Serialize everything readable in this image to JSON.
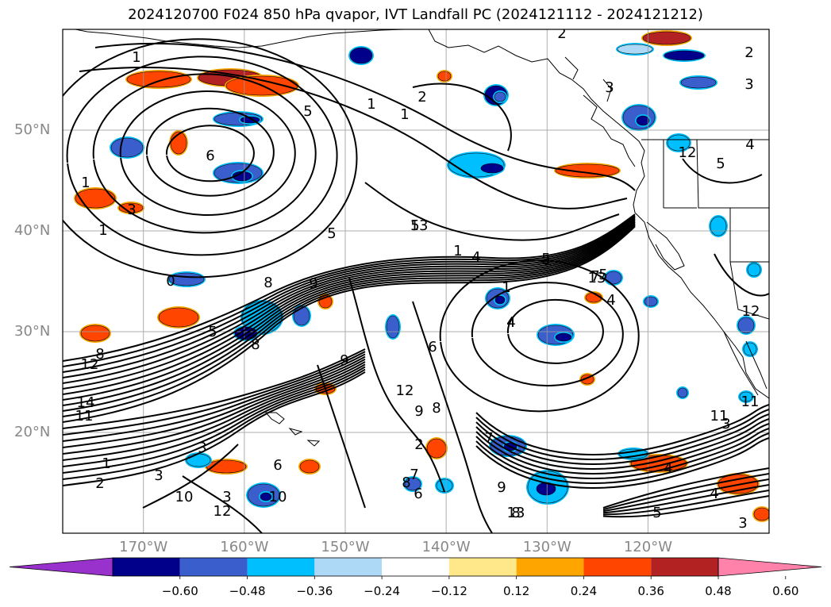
{
  "title": "2024120700 F024 850 hPa qvapor, IVT Landfall PC (2024121112 - 2024121212)",
  "map": {
    "extent": {
      "lon_min": -178,
      "lon_max": -108,
      "lat_min": 10,
      "lat_max": 60
    },
    "lat_ticks": [
      {
        "value": 20,
        "label": "20°N"
      },
      {
        "value": 30,
        "label": "30°N"
      },
      {
        "value": 40,
        "label": "40°N"
      },
      {
        "value": 50,
        "label": "50°N"
      }
    ],
    "lon_ticks": [
      {
        "value": -170,
        "label": "170°W"
      },
      {
        "value": -160,
        "label": "160°W"
      },
      {
        "value": -150,
        "label": "150°W"
      },
      {
        "value": -140,
        "label": "140°W"
      },
      {
        "value": -130,
        "label": "130°W"
      },
      {
        "value": -120,
        "label": "120°W"
      }
    ],
    "gridlines": true,
    "colors": {
      "land_outline": "#000000",
      "grid": "#999999",
      "contour": "#000000",
      "lat_lon_text": "#888888"
    }
  },
  "colorbar": {
    "orientation": "horizontal",
    "extend": "both",
    "levels": [
      -0.72,
      -0.6,
      -0.48,
      -0.36,
      -0.24,
      -0.12,
      0.12,
      0.24,
      0.36,
      0.48,
      0.6,
      0.72
    ],
    "colors": [
      "#9932CC",
      "#00008B",
      "#3A5FCD",
      "#00BFFF",
      "#ADD8F6",
      "#FFFFFF",
      "#FFE88A",
      "#FFA500",
      "#FF4500",
      "#B22222",
      "#FF82AB"
    ],
    "tick_labels": [
      "−0.60",
      "−0.48",
      "−0.36",
      "−0.24",
      "−0.12",
      "0.12",
      "0.24",
      "0.36",
      "0.48",
      "0.60"
    ]
  },
  "contour_labels": [
    "2",
    "2",
    "3",
    "3",
    "1",
    "5",
    "6",
    "1",
    "2",
    "1",
    "1",
    "1",
    "0",
    "8",
    "9",
    "5",
    "3",
    "5",
    "1",
    "4",
    "5",
    "7",
    "4",
    "1",
    "4",
    "5",
    "6",
    "9",
    "8",
    "8",
    "12",
    "10",
    "14",
    "11",
    "2",
    "3",
    "3",
    "1",
    "6",
    "3",
    "10",
    "12",
    "13",
    "12",
    "9",
    "8",
    "2",
    "8",
    "6",
    "7",
    "9",
    "8",
    "5",
    "3",
    "11",
    "12",
    "13",
    "4",
    "4",
    "11",
    "12",
    "13",
    "5",
    "1",
    "4",
    "7",
    "5",
    "4",
    "3"
  ]
}
